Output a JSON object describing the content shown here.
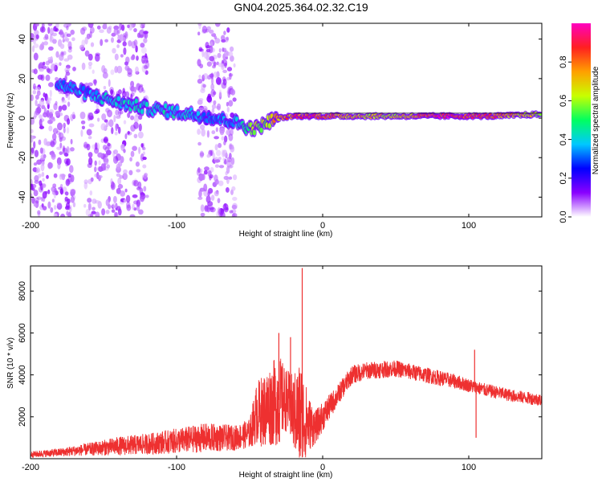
{
  "title": "GN04.2025.364.02.32.C19",
  "chart_data": [
    {
      "type": "heatmap",
      "xlabel": "Height of straight line (km)",
      "ylabel": "Frequency (Hz)",
      "xlim": [
        -200,
        150
      ],
      "ylim": [
        -50,
        48
      ],
      "xticks": [
        -200,
        -100,
        0,
        100
      ],
      "yticks": [
        -40,
        -20,
        0,
        20,
        40
      ],
      "colorbar": {
        "label": "Normalized spectral amplitude",
        "range": [
          0,
          1
        ],
        "ticks": [
          "0.0",
          "0.2",
          "0.4",
          "0.6",
          "0.8"
        ],
        "colormap": [
          "#ffffff",
          "#8a00ff",
          "#0000ff",
          "#00c8ff",
          "#00ff60",
          "#c8ff00",
          "#ffa000",
          "#ff2020",
          "#ff00c0"
        ]
      },
      "ridge": {
        "x": [
          -180,
          -160,
          -140,
          -120,
          -100,
          -80,
          -60,
          -50,
          -45,
          -40,
          -35,
          -30,
          -20,
          -10,
          0,
          20,
          50,
          80,
          100,
          120,
          150
        ],
        "freq": [
          17,
          12,
          8,
          5,
          3,
          1,
          -2,
          -5,
          -5,
          -3,
          -1,
          0,
          1,
          1,
          1,
          1,
          1,
          1,
          1,
          1,
          2
        ],
        "amplitude": [
          0.35,
          0.35,
          0.4,
          0.4,
          0.4,
          0.35,
          0.35,
          0.55,
          0.6,
          0.6,
          0.7,
          0.75,
          0.8,
          0.85,
          0.85,
          0.7,
          0.65,
          0.9,
          0.85,
          0.8,
          0.6
        ]
      }
    },
    {
      "type": "line",
      "xlabel": "Height of straight line (km)",
      "ylabel": "SNR (10 * v/v)",
      "xlim": [
        -200,
        150
      ],
      "ylim": [
        0,
        9200
      ],
      "xticks": [
        -200,
        -100,
        0,
        100
      ],
      "yticks": [
        2000,
        4000,
        6000,
        8000
      ],
      "color": "#ee3030",
      "envelope": {
        "x": [
          -200,
          -180,
          -160,
          -140,
          -120,
          -100,
          -80,
          -60,
          -50,
          -45,
          -40,
          -35,
          -30,
          -25,
          -20,
          -15,
          -10,
          -5,
          0,
          10,
          20,
          30,
          50,
          70,
          90,
          100,
          110,
          130,
          150
        ],
        "base": [
          200,
          300,
          450,
          600,
          700,
          850,
          1000,
          1000,
          1200,
          2200,
          2300,
          2600,
          2800,
          2800,
          2200,
          2000,
          1700,
          1500,
          2000,
          3000,
          4000,
          4200,
          4300,
          4000,
          3700,
          3500,
          3300,
          3000,
          2800
        ],
        "noise": [
          150,
          200,
          300,
          450,
          500,
          600,
          700,
          600,
          700,
          1500,
          1800,
          2000,
          2200,
          1500,
          1800,
          2800,
          1400,
          800,
          700,
          500,
          450,
          420,
          400,
          380,
          350,
          330,
          320,
          300,
          300
        ]
      },
      "spikes": [
        {
          "x": -14,
          "y": 9100
        },
        {
          "x": -22,
          "y": 5800
        },
        {
          "x": -30,
          "y": 6000
        },
        {
          "x": 104,
          "y": 5200
        },
        {
          "x": 105,
          "y": 1000
        }
      ]
    }
  ]
}
